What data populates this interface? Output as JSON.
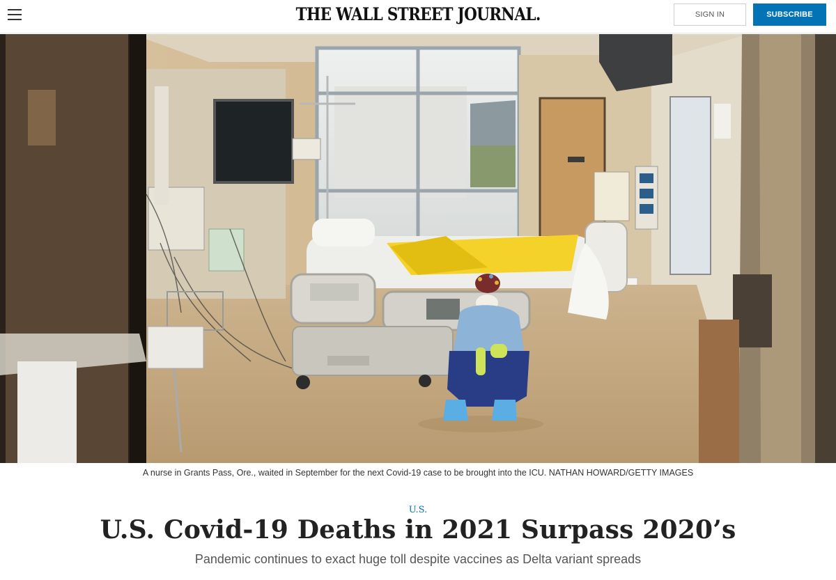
{
  "header": {
    "logo": "THE WALL STREET JOURNAL.",
    "signin_label": "SIGN IN",
    "subscribe_label": "SUBSCRIBE"
  },
  "photo": {
    "caption": "A nurse in Grants Pass, Ore., waited in September for the next Covid-19 case to be brought into the ICU. NATHAN HOWARD/GETTY IMAGES"
  },
  "article": {
    "section": "U.S.",
    "headline": "U.S. Covid-19 Deaths in 2021 Surpass 2020’s",
    "subhead": "Pandemic continues to exact huge toll despite vaccines as Delta variant spreads"
  },
  "colors": {
    "accent": "#0274b6",
    "headline": "#222222"
  },
  "icons": [
    "hamburger-menu-icon"
  ]
}
